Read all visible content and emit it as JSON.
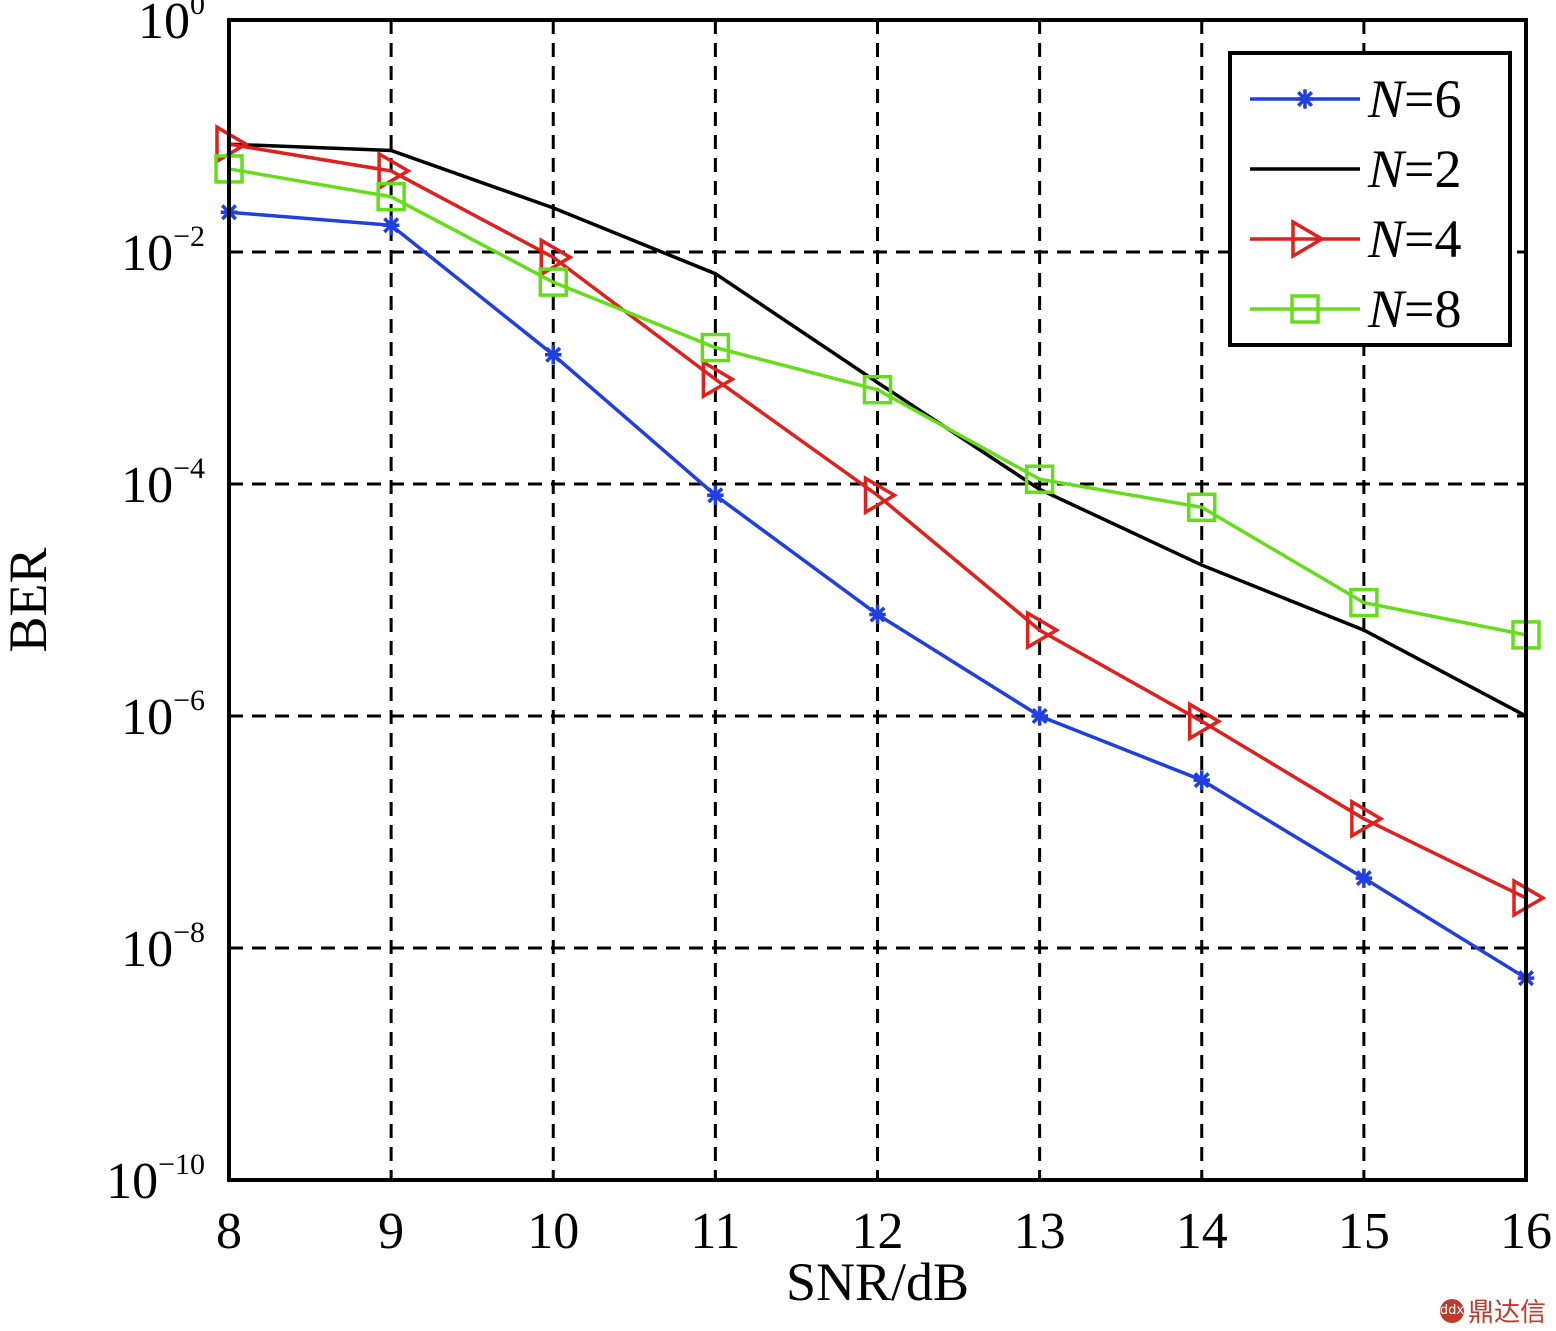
{
  "chart_data": {
    "type": "line",
    "xlabel": "SNR/dB",
    "ylabel": "BER",
    "xlim": [
      8,
      16
    ],
    "ylim": [
      1e-10,
      1
    ],
    "yscale": "log",
    "grid": true,
    "legend_position": "top-right",
    "x": [
      8,
      9,
      10,
      11,
      12,
      13,
      14,
      15,
      16
    ],
    "x_ticks": [
      "8",
      "9",
      "10",
      "11",
      "12",
      "13",
      "14",
      "15",
      "16"
    ],
    "y_ticks": [
      {
        "base": "10",
        "exp": "0"
      },
      {
        "base": "10",
        "exp": "−2"
      },
      {
        "base": "10",
        "exp": "−4"
      },
      {
        "base": "10",
        "exp": "−6"
      },
      {
        "base": "10",
        "exp": "−8"
      },
      {
        "base": "10",
        "exp": "−10"
      }
    ],
    "series": [
      {
        "name_var": "N",
        "name_val": "=6",
        "color": "#1f3fe0",
        "marker": "star",
        "values": [
          0.022,
          0.017,
          0.0013,
          8e-05,
          7.5e-06,
          1e-06,
          2.8e-07,
          4e-08,
          5.5e-09
        ]
      },
      {
        "name_var": "N",
        "name_val": "=2",
        "color": "#000000",
        "marker": "none",
        "values": [
          0.085,
          0.075,
          0.024,
          0.0065,
          0.00075,
          9e-05,
          2e-05,
          5.5e-06,
          1e-06
        ]
      },
      {
        "name_var": "N",
        "name_val": "=4",
        "color": "#e0201c",
        "marker": "triangle-right",
        "values": [
          0.085,
          0.05,
          0.009,
          0.0008,
          8e-05,
          5.5e-06,
          9e-07,
          1.3e-07,
          2.7e-08
        ]
      },
      {
        "name_var": "N",
        "name_val": "=8",
        "color": "#66dd1a",
        "marker": "square",
        "values": [
          0.052,
          0.03,
          0.0055,
          0.0015,
          0.00065,
          0.00011,
          6.3e-05,
          9.5e-06,
          5e-06
        ]
      }
    ]
  },
  "watermark": {
    "icon": "ddx-logo-icon",
    "text": "鼎达信"
  }
}
